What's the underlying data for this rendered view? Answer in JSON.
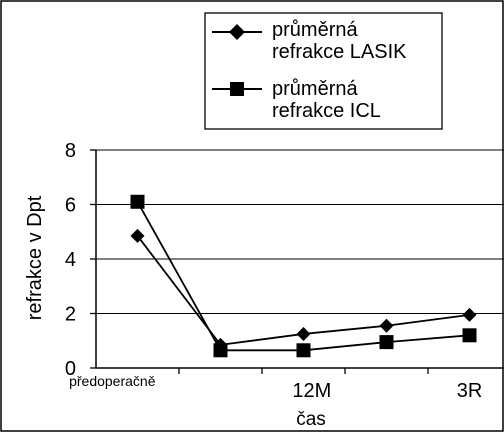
{
  "chart_data": {
    "type": "line",
    "title": "",
    "xlabel": "čas",
    "ylabel": "refrakce v Dpt",
    "ylim": [
      0,
      8
    ],
    "yticks": [
      0,
      2,
      4,
      6,
      8
    ],
    "grid": true,
    "legend_position": "top-right",
    "x_positions": [
      1,
      2,
      3,
      4,
      5
    ],
    "xtick_labels": [
      {
        "label": "předoperačně",
        "pos": 0.2
      },
      {
        "label": "12M",
        "pos": 3.1
      },
      {
        "label": "3R",
        "pos": 5.0
      }
    ],
    "series": [
      {
        "name": "průměrná refrakce LASIK",
        "marker": "diamond",
        "color": "#000000",
        "values": [
          4.85,
          0.85,
          1.25,
          1.55,
          1.95
        ]
      },
      {
        "name": "průměrná refrakce ICL",
        "marker": "square",
        "color": "#000000",
        "values": [
          6.1,
          0.65,
          0.65,
          0.95,
          1.2
        ]
      }
    ],
    "legend_lines": [
      [
        "průměrná",
        "refrakce LASIK"
      ],
      [
        "průměrná",
        "refrakce ICL"
      ]
    ]
  }
}
